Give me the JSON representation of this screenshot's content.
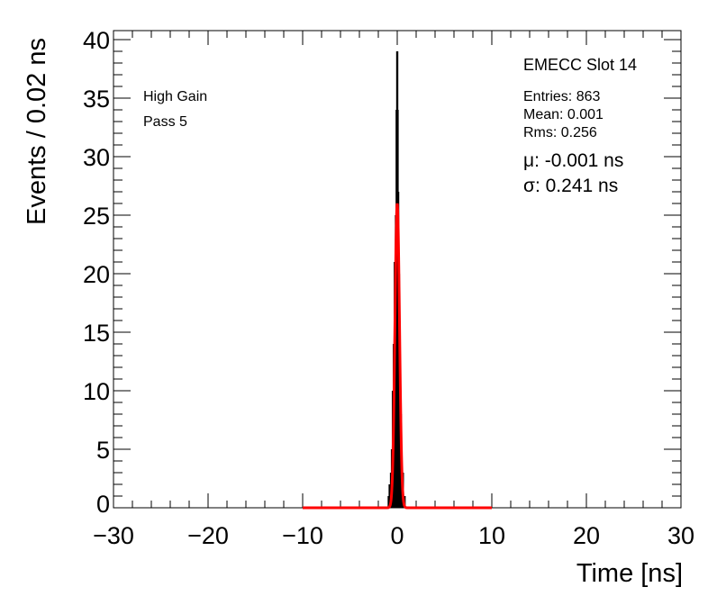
{
  "chart_data": {
    "type": "bar",
    "title": "",
    "xlabel": "Time [ns]",
    "ylabel": "Events / 0.02 ns",
    "xlim": [
      -30,
      30
    ],
    "ylim": [
      0,
      40
    ],
    "xticks": [
      -30,
      -20,
      -10,
      0,
      10,
      20,
      30
    ],
    "xtick_labels": [
      "−30",
      "−20",
      "−10",
      "0",
      "10",
      "20",
      "30"
    ],
    "yticks": [
      0,
      5,
      10,
      15,
      20,
      25,
      30,
      35,
      40
    ],
    "ytick_labels": [
      "0",
      "5",
      "10",
      "15",
      "20",
      "25",
      "30",
      "35",
      "40"
    ],
    "bin_width": 0.02,
    "histogram": [
      [
        -0.9,
        1
      ],
      [
        -0.8,
        2
      ],
      [
        -0.66,
        3
      ],
      [
        -0.56,
        5
      ],
      [
        -0.46,
        10
      ],
      [
        -0.36,
        14
      ],
      [
        -0.26,
        21
      ],
      [
        -0.14,
        25
      ],
      [
        -0.06,
        34
      ],
      [
        0.0,
        39
      ],
      [
        0.04,
        34
      ],
      [
        0.1,
        27
      ],
      [
        0.18,
        20
      ],
      [
        0.28,
        12
      ],
      [
        0.38,
        8
      ],
      [
        0.5,
        3
      ],
      [
        0.6,
        3
      ],
      [
        0.78,
        1
      ]
    ],
    "fit": {
      "type": "gaussian",
      "amplitude": 26,
      "mean": -0.001,
      "sigma": 0.241,
      "range": [
        -10,
        10
      ],
      "color": "#ff0000"
    },
    "annotations": {
      "left": [
        "High Gain",
        "Pass 5"
      ],
      "title_box": "EMECC Slot 14",
      "stats": [
        "Entries: 863",
        "Mean: 0.001",
        "Rms: 0.256"
      ],
      "fit_mu": "μ: -0.001 ns",
      "fit_sigma": "σ: 0.241 ns"
    },
    "grid": false
  }
}
